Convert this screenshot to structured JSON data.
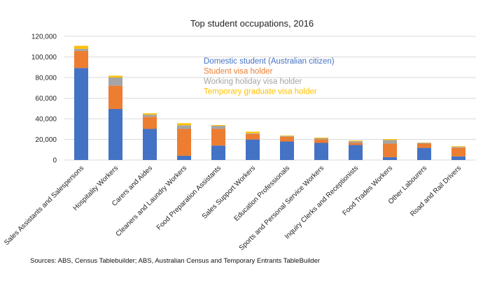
{
  "chart_data": {
    "type": "bar",
    "stacked": true,
    "title": "Top student occupations, 2016",
    "xlabel": "",
    "ylabel": "",
    "ylim": [
      0,
      120000
    ],
    "yticks": [
      "0",
      "20,000",
      "40,000",
      "60,000",
      "80,000",
      "100,000",
      "120,000"
    ],
    "ytick_values": [
      0,
      20000,
      40000,
      60000,
      80000,
      100000,
      120000
    ],
    "grid": true,
    "legend_position": "top-center",
    "categories": [
      "Sales Assistants and Salespersons",
      "Hospitality Workers",
      "Carers and Aides",
      "Cleaners and Laundry Workers",
      "Food Preparation Assistants",
      "Sales Support Workers",
      "Education Professionals",
      "Sports and Personal Service Workers",
      "Inquiry Clerks and Receptionists",
      "Food Trades Workers",
      "Other Labourers",
      "Road and Rail Drivers"
    ],
    "series": [
      {
        "name": "Domestic student (Australian citizen)",
        "color": "#4472C4",
        "values": [
          89300,
          49500,
          30200,
          4100,
          14000,
          19900,
          18000,
          16600,
          14600,
          2800,
          11800,
          3500
        ]
      },
      {
        "name": "Student visa holder",
        "color": "#ED7D31",
        "values": [
          16500,
          22600,
          11700,
          26100,
          16200,
          5300,
          4600,
          3500,
          2000,
          13100,
          4100,
          8300
        ]
      },
      {
        "name": "Working holiday visa holder",
        "color": "#A5A5A5",
        "values": [
          2100,
          8000,
          2100,
          3500,
          3000,
          700,
          700,
          900,
          1600,
          3500,
          700,
          900
        ]
      },
      {
        "name": "Temporary graduate visa holder",
        "color": "#FFC000",
        "values": [
          2900,
          1700,
          1300,
          2000,
          700,
          1600,
          500,
          700,
          700,
          900,
          300,
          700
        ]
      }
    ]
  },
  "source": "Sources: ABS, Census Tablebuilder; ABS, Australian Census and Temporary Entrants TableBuilder"
}
